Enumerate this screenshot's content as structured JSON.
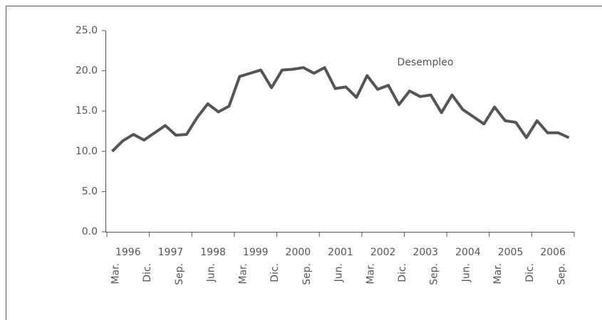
{
  "chart_data": {
    "type": "line",
    "annotation": "Desempleo",
    "categories": [
      "Mar.",
      null,
      null,
      "Dic.",
      null,
      null,
      "Sep.",
      null,
      null,
      "Jun.",
      null,
      null,
      "Mar.",
      null,
      null,
      "Dic.",
      null,
      null,
      "Sep.",
      null,
      null,
      "Jun.",
      null,
      null,
      "Mar.",
      null,
      null,
      "Dic.",
      null,
      null,
      "Sep.",
      null,
      null,
      "Jun.",
      null,
      null,
      "Mar.",
      null,
      null,
      "Dic.",
      null,
      null,
      "Sep.",
      null
    ],
    "years": [
      "1996",
      "1997",
      "1998",
      "1999",
      "2000",
      "2001",
      "2002",
      "2003",
      "2004",
      "2005",
      "2006"
    ],
    "series": [
      {
        "name": "Desempleo",
        "color": "#555555",
        "values": [
          10.0,
          11.3,
          12.1,
          11.4,
          12.3,
          13.2,
          12.0,
          12.1,
          14.2,
          15.9,
          14.9,
          15.6,
          19.3,
          19.7,
          20.1,
          17.9,
          20.1,
          20.2,
          20.4,
          19.7,
          20.4,
          17.8,
          18.0,
          16.7,
          19.4,
          17.7,
          18.2,
          15.8,
          17.5,
          16.8,
          17.0,
          14.8,
          17.0,
          15.2,
          14.3,
          13.4,
          15.5,
          13.8,
          13.6,
          11.7,
          13.8,
          12.3,
          12.3,
          11.7
        ]
      }
    ],
    "ylim": [
      0,
      25
    ],
    "yticks": [
      {
        "value": 0,
        "label": "0.0"
      },
      {
        "value": 5,
        "label": "5.0"
      },
      {
        "value": 10,
        "label": "10.0"
      },
      {
        "value": 15,
        "label": "15.0"
      },
      {
        "value": 20,
        "label": "20.0"
      },
      {
        "value": 25,
        "label": "25.0"
      }
    ],
    "grid": false
  }
}
